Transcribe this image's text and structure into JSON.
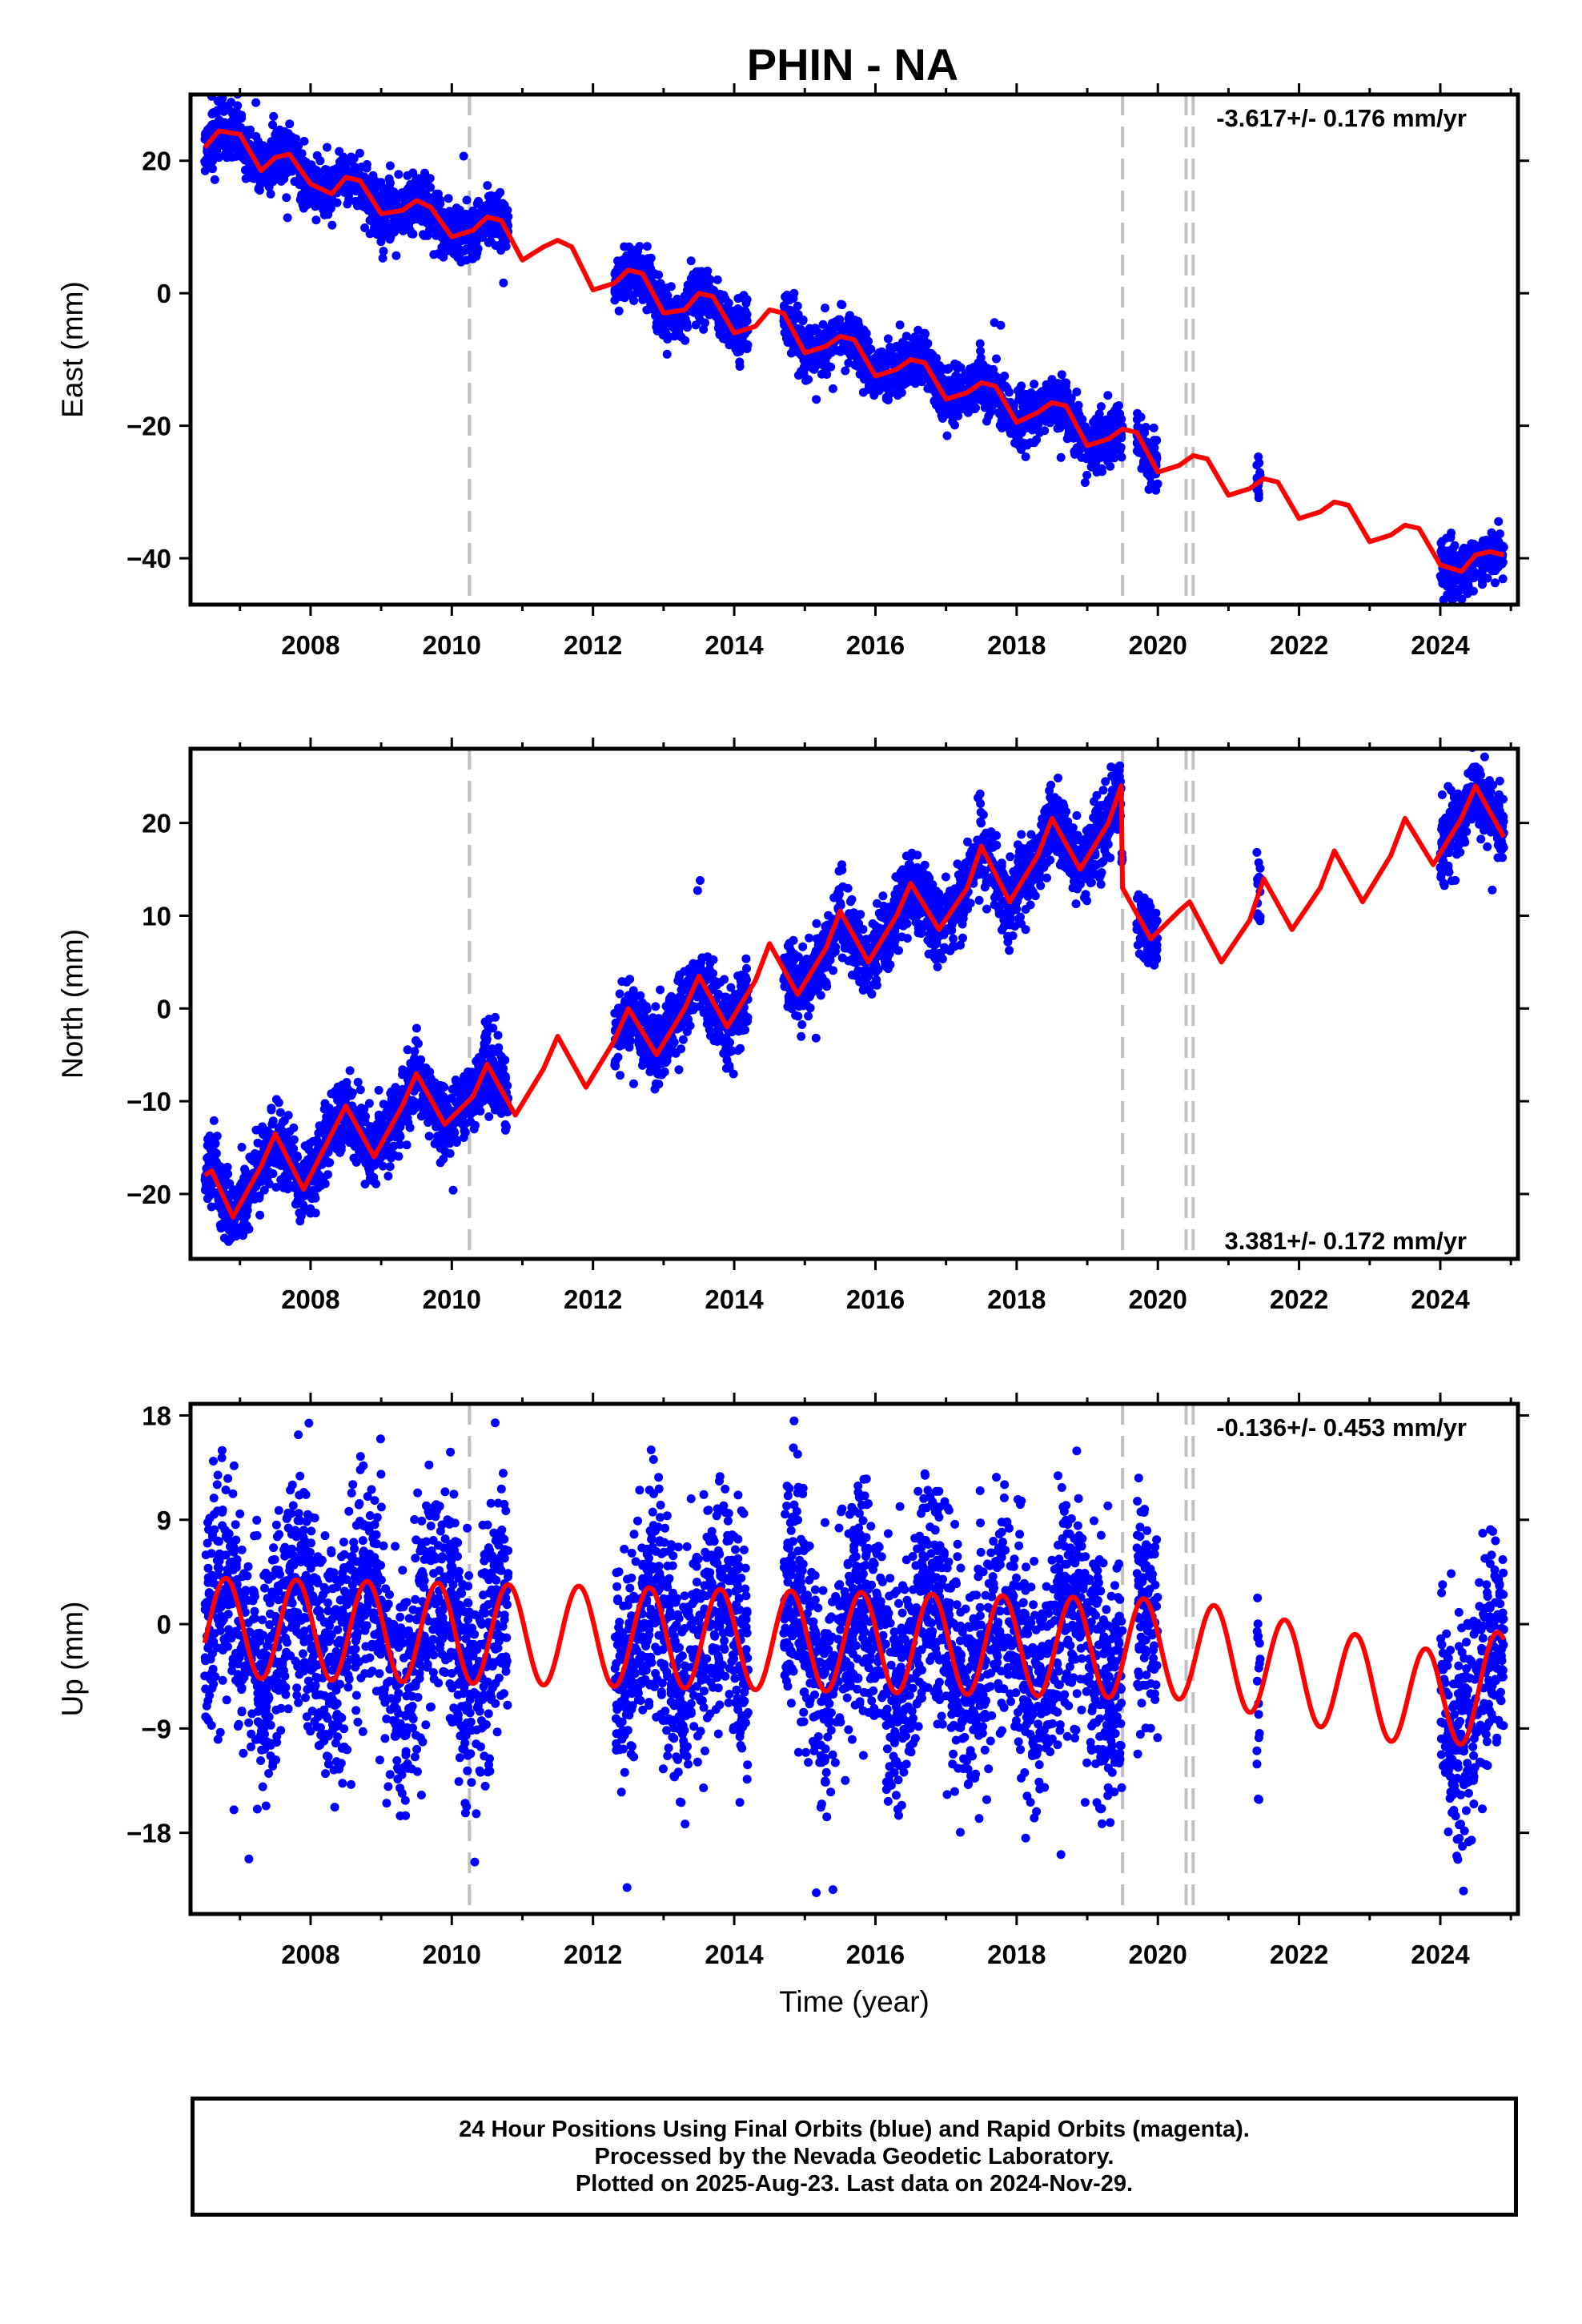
{
  "figure": {
    "title": "PHIN - NA",
    "xlabel": "Time (year)",
    "footer": [
      "24 Hour Positions Using Final Orbits (blue) and Rapid Orbits (magenta).",
      "Processed by the Nevada Geodetic Laboratory.",
      "Plotted on 2025-Aug-23. Last data on 2024-Nov-29."
    ],
    "colors": {
      "data": "#0000ff",
      "model": "#ff0000",
      "steps": "#c0c0c0",
      "frame": "#000000"
    }
  },
  "chart_data": [
    {
      "type": "scatter",
      "ylabel": "East (mm)",
      "rate_label": "-3.617+/- 0.176 mm/yr",
      "xlim": [
        2006.3,
        2025.1
      ],
      "ylim": [
        -47,
        30
      ],
      "yticks": [
        20,
        0,
        -20,
        -40
      ],
      "ytick_labels": [
        "20",
        "0",
        "−20",
        "−40"
      ],
      "xticks": [
        2008,
        2010,
        2012,
        2014,
        2016,
        2018,
        2020,
        2022,
        2024
      ],
      "step_epochs": [
        2010.25,
        2019.5,
        2020.4,
        2020.5
      ],
      "series": [
        {
          "name": "",
          "kind": "model",
          "color": "#ff0000",
          "x": [
            2006.5,
            2006.7,
            2007.0,
            2007.3,
            2007.5,
            2007.7,
            2008.0,
            2008.3,
            2008.5,
            2008.7,
            2009.0,
            2009.3,
            2009.5,
            2009.7,
            2010.0,
            2010.3,
            2010.5,
            2010.7,
            2011.0,
            2011.3,
            2011.5,
            2011.7,
            2012.0,
            2012.3,
            2012.5,
            2012.7,
            2013.0,
            2013.3,
            2013.5,
            2013.7,
            2014.0,
            2014.3,
            2014.5,
            2014.7,
            2015.0,
            2015.3,
            2015.5,
            2015.7,
            2016.0,
            2016.3,
            2016.5,
            2016.7,
            2017.0,
            2017.3,
            2017.5,
            2017.7,
            2018.0,
            2018.3,
            2018.5,
            2018.7,
            2019.0,
            2019.3,
            2019.5,
            2019.7,
            2020.0,
            2020.3,
            2020.5,
            2020.7,
            2021.0,
            2021.3,
            2021.5,
            2021.7,
            2022.0,
            2022.3,
            2022.5,
            2022.7,
            2023.0,
            2023.3,
            2023.5,
            2023.7,
            2024.0,
            2024.3,
            2024.5,
            2024.7,
            2024.9
          ],
          "y": [
            22,
            24.5,
            24,
            18.5,
            20.5,
            21,
            16.5,
            15,
            17.5,
            17,
            12,
            12.5,
            14,
            13,
            8.5,
            9.5,
            11.5,
            11,
            5,
            7,
            8,
            7,
            0.5,
            1.5,
            3.5,
            3,
            -3,
            -2.5,
            0,
            -0.5,
            -6,
            -5,
            -2.5,
            -3,
            -9,
            -8,
            -6.5,
            -7,
            -12.5,
            -11.5,
            -10,
            -10.5,
            -16,
            -15,
            -13.5,
            -14,
            -19.5,
            -18,
            -16.5,
            -17,
            -23,
            -22,
            -20.5,
            -21,
            -27,
            -26,
            -24.5,
            -25,
            -30.5,
            -29.5,
            -28,
            -28.5,
            -34,
            -33,
            -31.5,
            -32,
            -37.5,
            -36.5,
            -35,
            -35.5,
            -41,
            -42,
            -39.5,
            -39,
            -39.5
          ]
        },
        {
          "name": "",
          "kind": "data",
          "color": "#0000ff",
          "segments": [
            [
              2006.5,
              2010.8
            ],
            [
              2012.3,
              2014.2
            ],
            [
              2014.7,
              2019.5
            ],
            [
              2019.7,
              2020.0
            ],
            [
              2021.4,
              2021.45
            ],
            [
              2024.0,
              2024.9
            ]
          ],
          "scatter_mm": 2.0
        }
      ]
    },
    {
      "type": "scatter",
      "ylabel": "North (mm)",
      "rate_label": "3.381+/- 0.172 mm/yr",
      "xlim": [
        2006.3,
        2025.1
      ],
      "ylim": [
        -27,
        28
      ],
      "yticks": [
        20,
        10,
        0,
        -10,
        -20
      ],
      "ytick_labels": [
        "20",
        "10",
        "0",
        "−10",
        "−20"
      ],
      "xticks": [
        2008,
        2010,
        2012,
        2014,
        2016,
        2018,
        2020,
        2022,
        2024
      ],
      "step_epochs": [
        2010.25,
        2019.5,
        2020.4,
        2020.5
      ],
      "series": [
        {
          "name": "",
          "kind": "model",
          "color": "#ff0000",
          "x": [
            2006.5,
            2006.6,
            2006.9,
            2007.3,
            2007.5,
            2007.9,
            2008.3,
            2008.5,
            2008.9,
            2009.3,
            2009.5,
            2009.9,
            2010.3,
            2010.5,
            2010.9,
            2011.3,
            2011.5,
            2011.9,
            2012.3,
            2012.5,
            2012.9,
            2013.3,
            2013.5,
            2013.9,
            2014.3,
            2014.5,
            2014.9,
            2015.3,
            2015.5,
            2015.9,
            2016.3,
            2016.5,
            2016.9,
            2017.3,
            2017.5,
            2017.9,
            2018.3,
            2018.5,
            2018.9,
            2019.3,
            2019.48,
            2019.5,
            2019.9,
            2020.3,
            2020.45,
            2020.9,
            2021.3,
            2021.5,
            2021.9,
            2022.3,
            2022.5,
            2022.9,
            2023.3,
            2023.5,
            2023.9,
            2024.3,
            2024.5,
            2024.9
          ],
          "y": [
            -18,
            -17.5,
            -22.5,
            -17,
            -13.5,
            -19.5,
            -13.5,
            -10.5,
            -16,
            -10.5,
            -7,
            -12.5,
            -9.5,
            -6,
            -11.5,
            -6.5,
            -3,
            -8.5,
            -3.5,
            0,
            -5,
            0,
            3.5,
            -2,
            3,
            7,
            1.5,
            6.5,
            10.5,
            5,
            10,
            13.5,
            8.5,
            13,
            17.5,
            11.5,
            16.5,
            20.5,
            15,
            20,
            24,
            13,
            7.5,
            10.5,
            11.5,
            5,
            9.5,
            14,
            8.5,
            13,
            17,
            11.5,
            16.5,
            20.5,
            15.5,
            20.5,
            24,
            18.5
          ]
        },
        {
          "name": "",
          "kind": "data",
          "color": "#0000ff",
          "segments": [
            [
              2006.5,
              2010.8
            ],
            [
              2012.3,
              2014.2
            ],
            [
              2014.7,
              2019.5
            ],
            [
              2019.7,
              2020.0
            ],
            [
              2021.4,
              2021.45
            ],
            [
              2024.0,
              2024.9
            ]
          ],
          "scatter_mm": 2.0
        }
      ]
    },
    {
      "type": "scatter",
      "ylabel": "Up (mm)",
      "rate_label": "-0.136+/- 0.453 mm/yr",
      "xlim": [
        2006.3,
        2025.1
      ],
      "ylim": [
        -25,
        19
      ],
      "yticks": [
        18,
        9,
        0,
        -9,
        -18
      ],
      "ytick_labels": [
        "18",
        "9",
        "0",
        "−9",
        "−18"
      ],
      "xticks": [
        2008,
        2010,
        2012,
        2014,
        2016,
        2018,
        2020,
        2022,
        2024
      ],
      "step_epochs": [
        2010.25,
        2019.5,
        2020.4,
        2020.5
      ],
      "series": [
        {
          "name": "",
          "kind": "model",
          "color": "#ff0000",
          "amplitude": 4.3,
          "period_years": 1.0,
          "phase_peak_year": 2006.8,
          "trend_mm_per_yr": -0.136,
          "late_offsets": [
            [
              2020.4,
              0
            ],
            [
              2024.0,
              -4
            ],
            [
              2024.9,
              -2
            ]
          ]
        },
        {
          "name": "",
          "kind": "data",
          "color": "#0000ff",
          "segments": [
            [
              2006.5,
              2010.8
            ],
            [
              2012.3,
              2014.2
            ],
            [
              2014.7,
              2019.5
            ],
            [
              2019.7,
              2020.0
            ],
            [
              2021.4,
              2021.45
            ],
            [
              2024.0,
              2024.9
            ]
          ],
          "scatter_mm": 5.0
        }
      ]
    }
  ]
}
